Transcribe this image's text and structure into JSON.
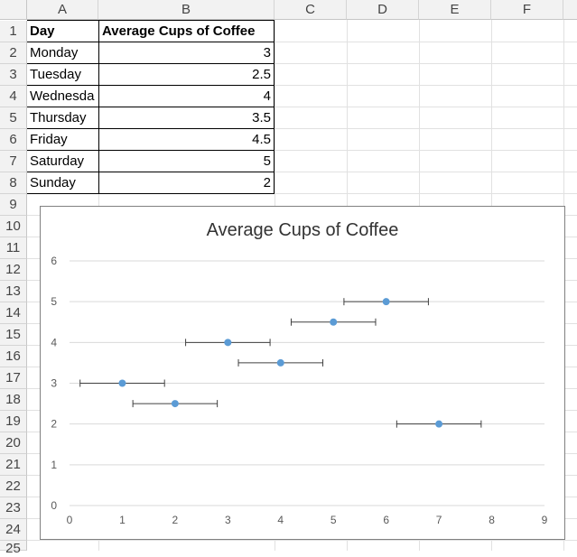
{
  "sheet": {
    "columns": [
      "A",
      "B",
      "C",
      "D",
      "E",
      "F"
    ],
    "rows": [
      "1",
      "2",
      "3",
      "4",
      "5",
      "6",
      "7",
      "8",
      "9",
      "10",
      "11",
      "12",
      "13",
      "14",
      "15",
      "16",
      "17",
      "18",
      "19",
      "20",
      "21",
      "22",
      "23",
      "24",
      "25"
    ],
    "header": {
      "day": "Day",
      "avg": "Average Cups of Coffee"
    },
    "data": [
      {
        "day": "Monday",
        "value": "3"
      },
      {
        "day": "Tuesday",
        "value": "2.5"
      },
      {
        "day": "Wednesda",
        "value": "4"
      },
      {
        "day": "Thursday",
        "value": "3.5"
      },
      {
        "day": "Friday",
        "value": "4.5"
      },
      {
        "day": "Saturday",
        "value": "5"
      },
      {
        "day": "Sunday",
        "value": "2"
      }
    ]
  },
  "chart_data": {
    "type": "scatter",
    "title": "Average Cups of Coffee",
    "xlabel": "",
    "ylabel": "",
    "xlim": [
      0,
      9
    ],
    "ylim": [
      0,
      6
    ],
    "xticks": [
      "0",
      "1",
      "2",
      "3",
      "4",
      "5",
      "6",
      "7",
      "8",
      "9"
    ],
    "yticks": [
      "0",
      "1",
      "2",
      "3",
      "4",
      "5",
      "6"
    ],
    "grid": "horizontal",
    "legend": "none",
    "marker_color": "#5b9bd5",
    "error_bar_color": "#404040",
    "x_error": 0.8,
    "points": [
      {
        "x": 1,
        "y": 3
      },
      {
        "x": 2,
        "y": 2.5
      },
      {
        "x": 3,
        "y": 4
      },
      {
        "x": 4,
        "y": 3.5
      },
      {
        "x": 5,
        "y": 4.5
      },
      {
        "x": 6,
        "y": 5
      },
      {
        "x": 7,
        "y": 2
      }
    ]
  }
}
